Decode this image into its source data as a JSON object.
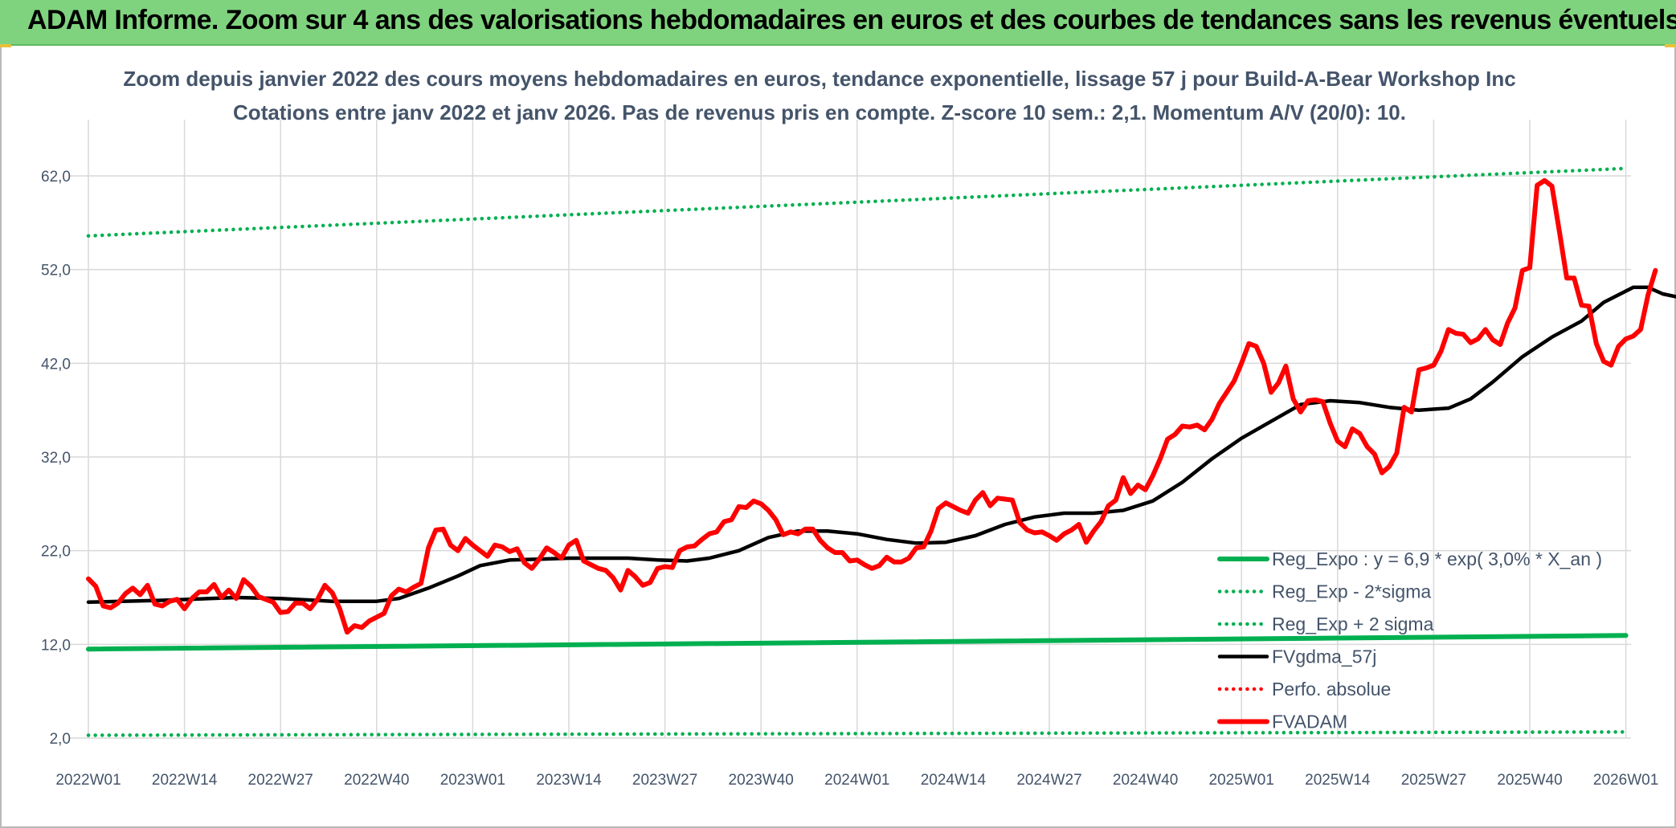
{
  "banner": {
    "title": "ADAM Informe. Zoom sur 4 ans des valorisations hebdomadaires en euros et des courbes de tendances sans les revenus éventuels"
  },
  "colors": {
    "banner": "#7fd37e",
    "trend_green": "#00b050",
    "price_red": "#ff0000",
    "smooth_black": "#000000",
    "text": "#44546a",
    "grid": "#d9d9d9"
  },
  "chart_data": {
    "type": "line",
    "title": "Zoom depuis janvier 2022 des cours moyens hebdomadaires en euros, tendance exponentielle, lissage 57 j pour Build-A-Bear Workshop Inc",
    "subtitle": "Cotations entre janv 2022 et janv 2026. Pas de revenus pris en compte. Z-score 10 sem.: 2,1. Momentum A/V (20/0): 10.",
    "xlabel": "",
    "ylabel": "",
    "ylim": [
      2.0,
      62.0
    ],
    "y_ticks": [
      "2,0",
      "12,0",
      "22,0",
      "32,0",
      "42,0",
      "52,0",
      "62,0"
    ],
    "x_ticks": [
      "2022W01",
      "2022W14",
      "2022W27",
      "2022W40",
      "2023W01",
      "2023W14",
      "2023W27",
      "2023W40",
      "2024W01",
      "2024W14",
      "2024W27",
      "2024W40",
      "2025W01",
      "2025W14",
      "2025W27",
      "2025W40",
      "2026W01"
    ],
    "grid": true,
    "legend_position": "bottom-right",
    "series": [
      {
        "name": "Reg_Expo : y = 6,9 * exp( 3,0% *  X_an )",
        "style": "solid-thick",
        "color": "#00b050",
        "points": [
          [
            0,
            11.5
          ],
          [
            208,
            12.95
          ]
        ]
      },
      {
        "name": "Reg_Exp - 2*sigma",
        "style": "dotted",
        "color": "#00b050",
        "points": [
          [
            0,
            2.3
          ],
          [
            208,
            2.65
          ]
        ]
      },
      {
        "name": "Reg_Exp + 2 sigma",
        "style": "dotted",
        "color": "#00b050",
        "points": [
          [
            0,
            55.6
          ],
          [
            208,
            62.8
          ]
        ]
      },
      {
        "name": "FVgdma_57j",
        "style": "solid",
        "color": "#000000",
        "points": [
          [
            0,
            16.5
          ],
          [
            10,
            16.7
          ],
          [
            20,
            17.0
          ],
          [
            26,
            16.9
          ],
          [
            33,
            16.6
          ],
          [
            39,
            16.6
          ],
          [
            42,
            16.9
          ],
          [
            46,
            18.0
          ],
          [
            50,
            19.3
          ],
          [
            53,
            20.4
          ],
          [
            57,
            21.0
          ],
          [
            61,
            21.1
          ],
          [
            65,
            21.2
          ],
          [
            69,
            21.2
          ],
          [
            73,
            21.2
          ],
          [
            77,
            21.0
          ],
          [
            81,
            20.9
          ],
          [
            84,
            21.2
          ],
          [
            88,
            22.0
          ],
          [
            92,
            23.4
          ],
          [
            96,
            24.1
          ],
          [
            100,
            24.1
          ],
          [
            104,
            23.8
          ],
          [
            108,
            23.2
          ],
          [
            112,
            22.8
          ],
          [
            116,
            22.9
          ],
          [
            120,
            23.6
          ],
          [
            124,
            24.8
          ],
          [
            128,
            25.6
          ],
          [
            132,
            26.0
          ],
          [
            136,
            26.0
          ],
          [
            140,
            26.3
          ],
          [
            144,
            27.3
          ],
          [
            148,
            29.3
          ],
          [
            152,
            31.8
          ],
          [
            156,
            34.0
          ],
          [
            160,
            35.8
          ],
          [
            164,
            37.6
          ],
          [
            168,
            38.0
          ],
          [
            172,
            37.8
          ],
          [
            176,
            37.3
          ],
          [
            180,
            37.0
          ],
          [
            184,
            37.2
          ],
          [
            187,
            38.2
          ],
          [
            190,
            40.0
          ],
          [
            194,
            42.7
          ],
          [
            198,
            44.8
          ],
          [
            202,
            46.5
          ],
          [
            205,
            48.5
          ],
          [
            209,
            50.1
          ],
          [
            211,
            50.1
          ],
          [
            213,
            49.4
          ],
          [
            216,
            48.9
          ],
          [
            219,
            48.0
          ],
          [
            222,
            47.8
          ],
          [
            225,
            48.2
          ],
          [
            227,
            48.6
          ],
          [
            230,
            49.6
          ]
        ]
      },
      {
        "name": "Perfo. absolue",
        "style": "dotted",
        "color": "#ff0000",
        "points": []
      },
      {
        "name": "FVADAM",
        "style": "solid-thick",
        "color": "#ff0000",
        "points": [
          [
            0,
            19.0
          ],
          [
            1,
            18.2
          ],
          [
            2,
            16.1
          ],
          [
            3,
            15.9
          ],
          [
            4,
            16.4
          ],
          [
            5,
            17.4
          ],
          [
            6,
            18.0
          ],
          [
            7,
            17.3
          ],
          [
            8,
            18.3
          ],
          [
            9,
            16.3
          ],
          [
            10,
            16.1
          ],
          [
            11,
            16.6
          ],
          [
            12,
            16.8
          ],
          [
            13,
            15.8
          ],
          [
            14,
            16.9
          ],
          [
            15,
            17.6
          ],
          [
            16,
            17.6
          ],
          [
            17,
            18.4
          ],
          [
            18,
            17.0
          ],
          [
            19,
            17.8
          ],
          [
            20,
            16.9
          ],
          [
            21,
            18.9
          ],
          [
            22,
            18.2
          ],
          [
            23,
            17.1
          ],
          [
            24,
            16.8
          ],
          [
            25,
            16.5
          ],
          [
            26,
            15.4
          ],
          [
            27,
            15.5
          ],
          [
            28,
            16.4
          ],
          [
            29,
            16.4
          ],
          [
            30,
            15.8
          ],
          [
            31,
            16.8
          ],
          [
            32,
            18.3
          ],
          [
            33,
            17.5
          ],
          [
            34,
            15.8
          ],
          [
            35,
            13.3
          ],
          [
            36,
            14.0
          ],
          [
            37,
            13.8
          ],
          [
            38,
            14.5
          ],
          [
            39,
            14.9
          ],
          [
            40,
            15.3
          ],
          [
            41,
            17.2
          ],
          [
            42,
            17.9
          ],
          [
            43,
            17.6
          ],
          [
            44,
            18.1
          ],
          [
            45,
            18.5
          ],
          [
            46,
            22.3
          ],
          [
            47,
            24.2
          ],
          [
            48,
            24.3
          ],
          [
            49,
            22.6
          ],
          [
            50,
            22.0
          ],
          [
            51,
            23.3
          ],
          [
            52,
            22.6
          ],
          [
            53,
            22.0
          ],
          [
            54,
            21.4
          ],
          [
            55,
            22.6
          ],
          [
            56,
            22.4
          ],
          [
            57,
            21.9
          ],
          [
            58,
            22.2
          ],
          [
            59,
            20.7
          ],
          [
            60,
            20.1
          ],
          [
            61,
            21.1
          ],
          [
            62,
            22.3
          ],
          [
            63,
            21.8
          ],
          [
            64,
            21.2
          ],
          [
            65,
            22.6
          ],
          [
            66,
            23.1
          ],
          [
            67,
            20.9
          ],
          [
            68,
            20.5
          ],
          [
            69,
            20.1
          ],
          [
            70,
            19.9
          ],
          [
            71,
            19.1
          ],
          [
            72,
            17.8
          ],
          [
            73,
            19.9
          ],
          [
            74,
            19.2
          ],
          [
            75,
            18.3
          ],
          [
            76,
            18.6
          ],
          [
            77,
            20.1
          ],
          [
            78,
            20.3
          ],
          [
            79,
            20.2
          ],
          [
            80,
            22.0
          ],
          [
            81,
            22.4
          ],
          [
            82,
            22.5
          ],
          [
            83,
            23.2
          ],
          [
            84,
            23.8
          ],
          [
            85,
            24.0
          ],
          [
            86,
            25.1
          ],
          [
            87,
            25.3
          ],
          [
            88,
            26.7
          ],
          [
            89,
            26.6
          ],
          [
            90,
            27.3
          ],
          [
            91,
            27.0
          ],
          [
            92,
            26.3
          ],
          [
            93,
            25.3
          ],
          [
            94,
            23.7
          ],
          [
            95,
            24.0
          ],
          [
            96,
            23.8
          ],
          [
            97,
            24.3
          ],
          [
            98,
            24.3
          ],
          [
            99,
            23.1
          ],
          [
            100,
            22.3
          ],
          [
            101,
            21.8
          ],
          [
            102,
            21.8
          ],
          [
            103,
            20.9
          ],
          [
            104,
            21.0
          ],
          [
            105,
            20.5
          ],
          [
            106,
            20.1
          ],
          [
            107,
            20.4
          ],
          [
            108,
            21.3
          ],
          [
            109,
            20.8
          ],
          [
            110,
            20.8
          ],
          [
            111,
            21.2
          ],
          [
            112,
            22.3
          ],
          [
            113,
            22.4
          ],
          [
            114,
            24.1
          ],
          [
            115,
            26.5
          ],
          [
            116,
            27.1
          ],
          [
            117,
            26.7
          ],
          [
            118,
            26.3
          ],
          [
            119,
            26.0
          ],
          [
            120,
            27.4
          ],
          [
            121,
            28.2
          ],
          [
            122,
            26.8
          ],
          [
            123,
            27.6
          ],
          [
            124,
            27.5
          ],
          [
            125,
            27.4
          ],
          [
            126,
            25.0
          ],
          [
            127,
            24.2
          ],
          [
            128,
            23.9
          ],
          [
            129,
            24.0
          ],
          [
            130,
            23.6
          ],
          [
            131,
            23.1
          ],
          [
            132,
            23.8
          ],
          [
            133,
            24.2
          ],
          [
            134,
            24.8
          ],
          [
            135,
            22.9
          ],
          [
            136,
            24.1
          ],
          [
            137,
            25.1
          ],
          [
            138,
            26.8
          ],
          [
            139,
            27.4
          ],
          [
            140,
            29.8
          ],
          [
            141,
            28.1
          ],
          [
            142,
            29.0
          ],
          [
            143,
            28.5
          ],
          [
            144,
            30.0
          ],
          [
            145,
            31.8
          ],
          [
            146,
            33.9
          ],
          [
            147,
            34.4
          ],
          [
            148,
            35.3
          ],
          [
            149,
            35.2
          ],
          [
            150,
            35.4
          ],
          [
            151,
            34.9
          ],
          [
            152,
            36.0
          ],
          [
            153,
            37.7
          ],
          [
            154,
            38.9
          ],
          [
            155,
            40.1
          ],
          [
            156,
            42.0
          ],
          [
            157,
            44.1
          ],
          [
            158,
            43.8
          ],
          [
            159,
            42.0
          ],
          [
            160,
            38.9
          ],
          [
            161,
            39.9
          ],
          [
            162,
            41.7
          ],
          [
            163,
            38.2
          ],
          [
            164,
            36.8
          ],
          [
            165,
            38.0
          ],
          [
            166,
            38.1
          ],
          [
            167,
            37.9
          ],
          [
            168,
            35.6
          ],
          [
            169,
            33.7
          ],
          [
            170,
            33.1
          ],
          [
            171,
            35.0
          ],
          [
            172,
            34.5
          ],
          [
            173,
            33.1
          ],
          [
            174,
            32.3
          ],
          [
            175,
            30.3
          ],
          [
            176,
            31.0
          ],
          [
            177,
            32.4
          ],
          [
            178,
            37.3
          ],
          [
            179,
            36.8
          ],
          [
            180,
            41.3
          ],
          [
            181,
            41.5
          ],
          [
            182,
            41.8
          ],
          [
            183,
            43.3
          ],
          [
            184,
            45.6
          ],
          [
            185,
            45.2
          ],
          [
            186,
            45.1
          ],
          [
            187,
            44.2
          ],
          [
            188,
            44.6
          ],
          [
            189,
            45.6
          ],
          [
            190,
            44.5
          ],
          [
            191,
            44.0
          ],
          [
            192,
            46.3
          ],
          [
            193,
            47.9
          ],
          [
            194,
            51.9
          ],
          [
            195,
            52.2
          ],
          [
            196,
            61.0
          ],
          [
            197,
            61.5
          ],
          [
            198,
            60.9
          ],
          [
            199,
            56.1
          ],
          [
            200,
            51.1
          ],
          [
            201,
            51.1
          ],
          [
            202,
            48.2
          ],
          [
            203,
            48.1
          ],
          [
            204,
            44.1
          ],
          [
            205,
            42.2
          ],
          [
            206,
            41.8
          ],
          [
            207,
            43.8
          ],
          [
            208,
            44.6
          ],
          [
            209,
            44.9
          ],
          [
            210,
            45.6
          ],
          [
            211,
            49.3
          ],
          [
            212,
            51.9
          ]
        ]
      }
    ]
  }
}
